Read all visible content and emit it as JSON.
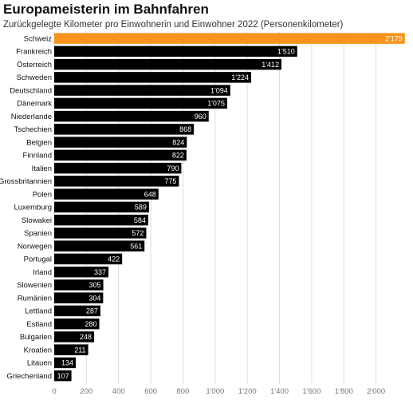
{
  "chart_data": {
    "type": "bar",
    "orientation": "horizontal",
    "title": "Europameisterin im Bahnfahren",
    "subtitle": "Zurückgelegte Kilometer pro Einwohnerin und Einwohner 2022 (Personenkilometer)",
    "categories": [
      "Schweiz",
      "Frankreich",
      "Österreich",
      "Schweden",
      "Deutschland",
      "Dänemark",
      "Niederlande",
      "Tschechien",
      "Belgien",
      "Finnland",
      "Italien",
      "Grossbritannien",
      "Polen",
      "Luxemburg",
      "Slowakei",
      "Spanien",
      "Norwegen",
      "Portugal",
      "Irland",
      "Slowenien",
      "Rumänien",
      "Lettland",
      "Estland",
      "Bulgarien",
      "Kroatien",
      "Litauen",
      "Griechenland"
    ],
    "values": [
      2179,
      1510,
      1412,
      1224,
      1094,
      1075,
      960,
      868,
      824,
      822,
      790,
      775,
      648,
      589,
      584,
      572,
      561,
      422,
      337,
      305,
      304,
      287,
      280,
      248,
      211,
      134,
      107
    ],
    "value_labels": [
      "2'179",
      "1'510",
      "1'412",
      "1'224",
      "1'094",
      "1'075",
      "960",
      "868",
      "824",
      "822",
      "790",
      "775",
      "648",
      "589",
      "584",
      "572",
      "561",
      "422",
      "337",
      "305",
      "304",
      "287",
      "280",
      "248",
      "211",
      "134",
      "107"
    ],
    "xlim": [
      0,
      2200
    ],
    "xticks": [
      0,
      200,
      400,
      600,
      800,
      1000,
      1200,
      1400,
      1600,
      1800,
      2000
    ],
    "xtick_labels": [
      "0",
      "200",
      "400",
      "600",
      "800",
      "1'000",
      "1'200",
      "1'400",
      "1'600",
      "1'800",
      "2'000"
    ],
    "grid": true,
    "colors": {
      "highlight": "#f7941d",
      "bar": "#000000",
      "grid": "#dddddd",
      "highlight_index": 0
    }
  }
}
